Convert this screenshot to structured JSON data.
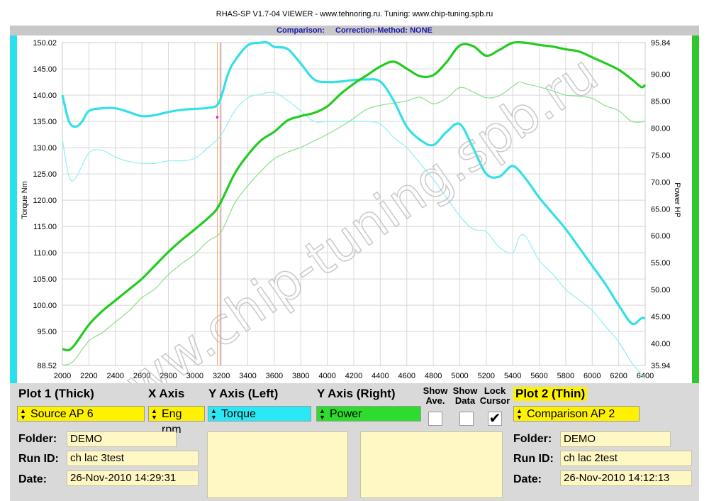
{
  "title": "RHAS-SP V1.7-04  VIEWER - www.tehnoring.ru. Tuning: www.chip-tuning.spb.ru",
  "subtitle": {
    "comparison": "Comparison:",
    "method": "Correction-Method: NONE"
  },
  "watermark": "www.chip-tuning.spb.ru",
  "colors": {
    "torque": "#33e0e8",
    "power": "#22cc22",
    "torque_thin": "#8ef0f4",
    "power_thin": "#88e088",
    "cursor": "#e07070"
  },
  "chart_data": {
    "type": "line",
    "xlabel": "",
    "ylabel_left": "Torque Nm",
    "ylabel_right": "Power HP",
    "xlim": [
      2000,
      6400
    ],
    "ylim_left": [
      88.52,
      150.02
    ],
    "ylim_right": [
      35.94,
      95.84
    ],
    "x_ticks": [
      "2000",
      "2200",
      "2400",
      "2600",
      "2800",
      "3000",
      "3200",
      "3400",
      "3600",
      "3800",
      "4000",
      "4200",
      "4400",
      "4600",
      "4800",
      "5000",
      "5200",
      "5400",
      "5600",
      "5800",
      "6000",
      "6200",
      "6400"
    ],
    "y_left_ticks": [
      "150.02",
      "145.00",
      "140.00",
      "135.00",
      "130.00",
      "125.00",
      "120.00",
      "115.00",
      "110.00",
      "105.00",
      "100.00",
      "95.00",
      "88.52"
    ],
    "y_left_tick_values": [
      150.02,
      145,
      140,
      135,
      130,
      125,
      120,
      115,
      110,
      105,
      100,
      95,
      88.52
    ],
    "y_right_ticks": [
      "95.84",
      "90.00",
      "85.00",
      "80.00",
      "75.00",
      "70.00",
      "65.00",
      "60.00",
      "55.00",
      "50.00",
      "45.00",
      "40.00",
      "35.94"
    ],
    "y_right_tick_values": [
      95.84,
      90,
      85,
      80,
      75,
      70,
      65,
      60,
      55,
      50,
      45,
      40,
      35.94
    ],
    "cursor_x": 3180,
    "grid": true,
    "series": [
      {
        "axis": "left",
        "weight": "thick",
        "x": [
          2000,
          2050,
          2100,
          2150,
          2200,
          2300,
          2400,
          2500,
          2600,
          2700,
          2800,
          2900,
          3000,
          3100,
          3180,
          3250,
          3300,
          3400,
          3500,
          3550,
          3600,
          3700,
          3800,
          3900,
          4000,
          4100,
          4200,
          4300,
          4400,
          4500,
          4600,
          4700,
          4800,
          4900,
          5000,
          5100,
          5200,
          5300,
          5400,
          5500,
          5600,
          5700,
          5800,
          5900,
          6000,
          6100,
          6200,
          6300,
          6370,
          6400
        ],
        "y": [
          140,
          135,
          134,
          135,
          137,
          137.5,
          137.5,
          136.8,
          136,
          136.2,
          136.8,
          137.2,
          137.4,
          137.6,
          138.5,
          144,
          146.5,
          149.5,
          150,
          150,
          149.2,
          148.8,
          146,
          143,
          142.5,
          142.6,
          142.9,
          143,
          142.6,
          139,
          134,
          131.5,
          130.5,
          133,
          134.5,
          130,
          125,
          124.5,
          126.5,
          124,
          120.5,
          117.5,
          114.5,
          111,
          107.5,
          104,
          100,
          96.5,
          97.5,
          97.5
        ]
      },
      {
        "axis": "right",
        "weight": "thick",
        "x": [
          2000,
          2050,
          2100,
          2200,
          2300,
          2400,
          2500,
          2600,
          2700,
          2800,
          2900,
          3000,
          3100,
          3180,
          3300,
          3400,
          3500,
          3600,
          3700,
          3800,
          3900,
          4000,
          4100,
          4200,
          4300,
          4400,
          4500,
          4600,
          4700,
          4800,
          4900,
          5000,
          5100,
          5200,
          5300,
          5400,
          5500,
          5600,
          5700,
          5800,
          5900,
          6000,
          6100,
          6200,
          6300,
          6370,
          6400
        ],
        "y": [
          39,
          38.8,
          40,
          43.5,
          46,
          48,
          50,
          52,
          54.5,
          57,
          59.2,
          61.2,
          63.3,
          65.5,
          71.5,
          75,
          77.7,
          79.3,
          81.4,
          82.2,
          82.8,
          84,
          86.3,
          88.2,
          89.8,
          91.4,
          92.3,
          91,
          89.6,
          89.8,
          92.2,
          95.3,
          95.2,
          93.4,
          94.5,
          95.8,
          95.8,
          95.4,
          95.1,
          94.6,
          94.2,
          93.1,
          92,
          90.8,
          89,
          87.6,
          88
        ]
      },
      {
        "axis": "left",
        "weight": "thin",
        "x": [
          2000,
          2050,
          2100,
          2200,
          2300,
          2400,
          2500,
          2600,
          2700,
          2800,
          2900,
          3000,
          3100,
          3200,
          3300,
          3400,
          3500,
          3600,
          3700,
          3800,
          3900,
          4000,
          4100,
          4200,
          4300,
          4400,
          4500,
          4600,
          4700,
          4800,
          4900,
          5000,
          5100,
          5200,
          5300,
          5400,
          5450,
          5500,
          5600,
          5700,
          5800,
          5900,
          6000,
          6100,
          6200,
          6300,
          6400
        ],
        "y": [
          131.5,
          124.5,
          124.2,
          129,
          129.5,
          128.2,
          127.4,
          127,
          127,
          127.5,
          127.5,
          128,
          130,
          132.5,
          137,
          139.5,
          140.2,
          140.5,
          139,
          137,
          135,
          135,
          135,
          135,
          135,
          134.5,
          132,
          130,
          127,
          124,
          120.5,
          117,
          114.5,
          114,
          111,
          110,
          113,
          113,
          108.5,
          106,
          103,
          101,
          99,
          96,
          93,
          89,
          86
        ]
      },
      {
        "axis": "right",
        "weight": "thin",
        "x": [
          2000,
          2050,
          2100,
          2200,
          2300,
          2400,
          2500,
          2600,
          2700,
          2800,
          2900,
          3000,
          3100,
          3200,
          3300,
          3400,
          3500,
          3600,
          3700,
          3800,
          3900,
          4000,
          4100,
          4200,
          4300,
          4400,
          4500,
          4600,
          4700,
          4800,
          4900,
          5000,
          5100,
          5200,
          5300,
          5400,
          5450,
          5500,
          5600,
          5700,
          5800,
          5900,
          6000,
          6100,
          6200,
          6300,
          6400
        ],
        "y": [
          36,
          36.2,
          37.2,
          40.5,
          42,
          44,
          46,
          48.5,
          50.2,
          52.8,
          54.8,
          56.6,
          59,
          60.8,
          66,
          69.3,
          72,
          74.3,
          75.5,
          76.4,
          77.6,
          78.8,
          80.2,
          81.8,
          83.5,
          84.2,
          84.6,
          85,
          85.7,
          84.5,
          85.5,
          87.5,
          86.7,
          85.6,
          86,
          87.7,
          88.5,
          88.2,
          87.6,
          86.9,
          86.1,
          85.9,
          85.5,
          84.1,
          83.2,
          81.2,
          81.2
        ]
      }
    ]
  },
  "controls": {
    "plot1_label": "Plot 1 (Thick)",
    "xaxis_label": "X Axis",
    "yleft_label": "Y Axis (Left)",
    "yright_label": "Y Axis (Right)",
    "show_ave_label_1": "Show",
    "show_ave_label_2": "Ave.",
    "show_data_label_1": "Show",
    "show_data_label_2": "Data",
    "lock_cursor_label_1": "Lock",
    "lock_cursor_label_2": "Cursor",
    "plot2_label": "Plot 2 (Thin)",
    "plot1_source": "Source AP 6",
    "xaxis_value": "Eng rpm",
    "yleft_value": "Torque",
    "yright_value": "Power",
    "plot2_source": "Comparison AP 2",
    "lock_cursor_mark": "✔",
    "folder_label": "Folder:",
    "runid_label": "Run ID:",
    "date_label": "Date:",
    "plot1_folder": "DEMO",
    "plot1_runid": "ch lac 3test",
    "plot1_date": "26-Nov-2010  14:29:31",
    "plot2_folder": "DEMO",
    "plot2_runid": "ch lac 2test",
    "plot2_date": "26-Nov-2010  14:12:13"
  }
}
